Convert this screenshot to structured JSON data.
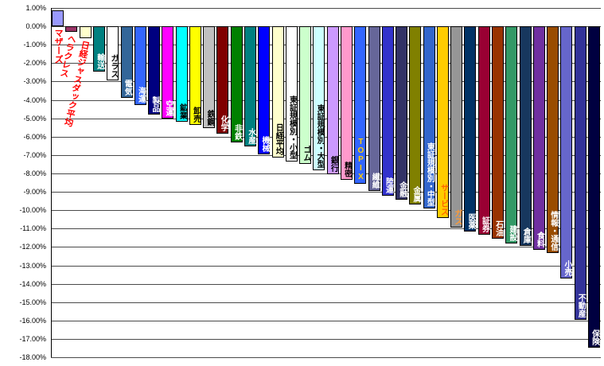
{
  "chart_data": {
    "type": "bar",
    "title": "",
    "xlabel": "",
    "ylabel": "",
    "ylim": [
      -18,
      1
    ],
    "grid": true,
    "legend": false,
    "y_tick_labels": [
      "1.00%",
      "0.00%",
      "-1.00%",
      "-2.00%",
      "-3.00%",
      "-4.00%",
      "-5.00%",
      "-6.00%",
      "-7.00%",
      "-8.00%",
      "-9.00%",
      "-10.00%",
      "-11.00%",
      "-12.00%",
      "-13.00%",
      "-14.00%",
      "-15.00%",
      "-16.00%",
      "-17.00%",
      "-18.00%"
    ],
    "bars": [
      {
        "label": "マザーズ",
        "value": 0.88,
        "color": "#9999FF",
        "text_color": "#FF0000",
        "label_outside": true,
        "rotate": 0
      },
      {
        "label": "ヘラクレス",
        "value": -0.3,
        "color": "#993366",
        "text_color": "#FF0000",
        "label_outside": true,
        "rotate": 12
      },
      {
        "label": "日経ジャスダック平均",
        "value": -0.65,
        "color": "#FFFFCC",
        "text_color": "#FF0000",
        "label_outside": true,
        "rotate": 12
      },
      {
        "label": "輸送",
        "value": -2.45,
        "color": "#008080",
        "text_color": "#FFFFFF",
        "label_outside": false,
        "rotate": 0
      },
      {
        "label": "ガラス",
        "value": -2.95,
        "color": "#FFFFFF",
        "text_color": "#000000",
        "label_outside": false,
        "rotate": 0
      },
      {
        "label": "電気",
        "value": -3.9,
        "color": "#336699",
        "text_color": "#FFFFFF",
        "label_outside": false,
        "rotate": 0
      },
      {
        "label": "海運",
        "value": -4.3,
        "color": "#3366FF",
        "text_color": "#FFFFFF",
        "label_outside": false,
        "rotate": 0
      },
      {
        "label": "製品",
        "value": -4.8,
        "color": "#000080",
        "text_color": "#FFFFFF",
        "label_outside": false,
        "rotate": 0
      },
      {
        "label": "空運",
        "value": -5.0,
        "color": "#FF00FF",
        "text_color": "#FFFFFF",
        "label_outside": false,
        "rotate": 0
      },
      {
        "label": "鉱業",
        "value": -5.2,
        "color": "#00FFFF",
        "text_color": "#000000",
        "label_outside": false,
        "rotate": 0
      },
      {
        "label": "卸売",
        "value": -5.35,
        "color": "#FFFF00",
        "text_color": "#000000",
        "label_outside": false,
        "rotate": 0
      },
      {
        "label": "鉄鋼",
        "value": -5.55,
        "color": "#C0C0C0",
        "text_color": "#000000",
        "label_outside": false,
        "rotate": 0
      },
      {
        "label": "化学",
        "value": -5.85,
        "color": "#800000",
        "text_color": "#FFFFFF",
        "label_outside": false,
        "rotate": 0
      },
      {
        "label": "非鉄",
        "value": -6.3,
        "color": "#008000",
        "text_color": "#FFFFFF",
        "label_outside": false,
        "rotate": 0
      },
      {
        "label": "水産",
        "value": -6.55,
        "color": "#008080",
        "text_color": "#FFFFFF",
        "label_outside": false,
        "rotate": 0
      },
      {
        "label": "機械",
        "value": -6.95,
        "color": "#0000FF",
        "text_color": "#FFFFFF",
        "label_outside": false,
        "rotate": 0
      },
      {
        "label": "日経平均",
        "value": -7.15,
        "color": "#FFFFCC",
        "text_color": "#000000",
        "label_outside": false,
        "rotate": 0
      },
      {
        "label": "東証規模別・小型",
        "value": -7.35,
        "color": "#FFFFFF",
        "text_color": "#000000",
        "label_outside": false,
        "rotate": 0
      },
      {
        "label": "ゴム",
        "value": -7.5,
        "color": "#CCFFCC",
        "text_color": "#000000",
        "label_outside": false,
        "rotate": 0
      },
      {
        "label": "東証規模別・大型",
        "value": -7.85,
        "color": "#CCFFFF",
        "text_color": "#000000",
        "label_outside": false,
        "rotate": 0
      },
      {
        "label": "銀行",
        "value": -8.05,
        "color": "#CC99FF",
        "text_color": "#000000",
        "label_outside": false,
        "rotate": 0
      },
      {
        "label": "精密",
        "value": -8.35,
        "color": "#FF99CC",
        "text_color": "#000000",
        "label_outside": false,
        "rotate": 0
      },
      {
        "label": "TOPIX",
        "value": -8.55,
        "color": "#3366FF",
        "text_color": "#FFCC00",
        "label_outside": false,
        "rotate": 0
      },
      {
        "label": "繊維",
        "value": -8.95,
        "color": "#666699",
        "text_color": "#FFFFFF",
        "label_outside": false,
        "rotate": 0
      },
      {
        "label": "陸運",
        "value": -9.2,
        "color": "#3333CC",
        "text_color": "#FFFFFF",
        "label_outside": false,
        "rotate": 0
      },
      {
        "label": "金融",
        "value": -9.45,
        "color": "#333366",
        "text_color": "#FFFFFF",
        "label_outside": false,
        "rotate": 0
      },
      {
        "label": "金属",
        "value": -9.7,
        "color": "#808000",
        "text_color": "#FFFFFF",
        "label_outside": false,
        "rotate": 0
      },
      {
        "label": "東証規模別・中型",
        "value": -9.9,
        "color": "#3366CC",
        "text_color": "#FFFFFF",
        "label_outside": false,
        "rotate": 0
      },
      {
        "label": "サービス",
        "value": -10.45,
        "color": "#FFCC00",
        "text_color": "#FF6600",
        "label_outside": false,
        "rotate": 0
      },
      {
        "label": "ガス",
        "value": -10.95,
        "color": "#969696",
        "text_color": "#FF9933",
        "label_outside": false,
        "rotate": 0
      },
      {
        "label": "医薬",
        "value": -11.15,
        "color": "#003366",
        "text_color": "#FFFFFF",
        "label_outside": false,
        "rotate": 0
      },
      {
        "label": "証券",
        "value": -11.35,
        "color": "#990033",
        "text_color": "#FFFFFF",
        "label_outside": false,
        "rotate": 0
      },
      {
        "label": "石油",
        "value": -11.55,
        "color": "#993300",
        "text_color": "#FFFFFF",
        "label_outside": false,
        "rotate": 0
      },
      {
        "label": "建設",
        "value": -11.8,
        "color": "#339966",
        "text_color": "#FFFFFF",
        "label_outside": false,
        "rotate": 0
      },
      {
        "label": "倉庫",
        "value": -11.95,
        "color": "#17375E",
        "text_color": "#FFFFFF",
        "label_outside": false,
        "rotate": 0
      },
      {
        "label": "食料",
        "value": -12.15,
        "color": "#7030A0",
        "text_color": "#FFFFFF",
        "label_outside": false,
        "rotate": 0
      },
      {
        "label": "情報・通信",
        "value": -12.35,
        "color": "#994C00",
        "text_color": "#FFFFFF",
        "label_outside": false,
        "rotate": 0
      },
      {
        "label": "小売",
        "value": -13.7,
        "color": "#6666CC",
        "text_color": "#FFFFFF",
        "label_outside": false,
        "rotate": 0
      },
      {
        "label": "不動産",
        "value": -15.95,
        "color": "#333399",
        "text_color": "#FFFFFF",
        "label_outside": false,
        "rotate": 0
      },
      {
        "label": "保険",
        "value": -17.5,
        "color": "#000040",
        "text_color": "#FFFFFF",
        "label_outside": false,
        "rotate": 0
      }
    ]
  }
}
